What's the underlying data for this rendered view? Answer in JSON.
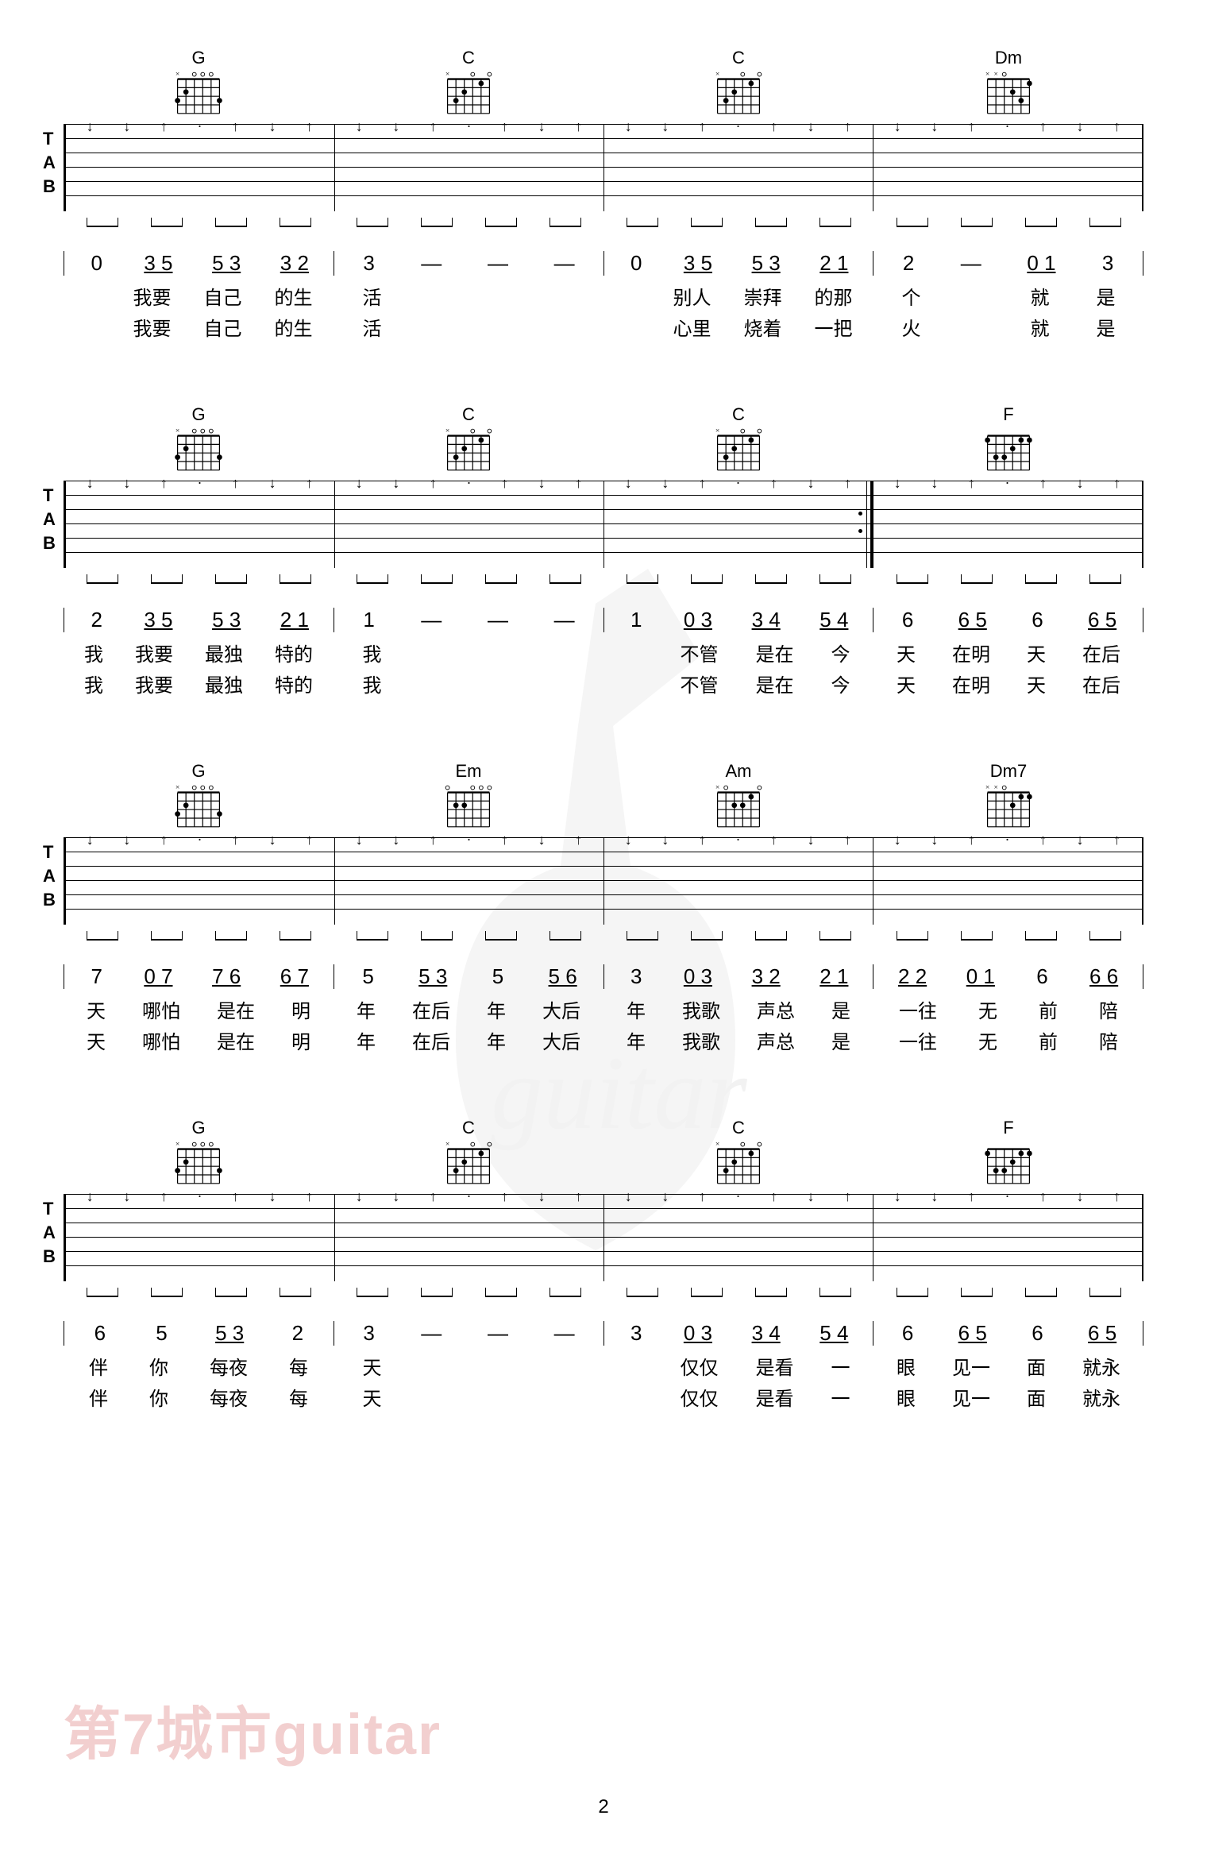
{
  "page_number": "2",
  "watermark_text": "第7城市guitar",
  "colors": {
    "background": "#ffffff",
    "staff_line": "#000000",
    "watermark": "#e8a8a8",
    "watermark_opacity": 0.55
  },
  "chord_diagrams": {
    "G": {
      "name": "G",
      "frets": [
        3,
        2,
        0,
        0,
        0,
        3
      ],
      "markers": [
        "x",
        "",
        "",
        "",
        "",
        ""
      ]
    },
    "C": {
      "name": "C",
      "frets": [
        0,
        3,
        2,
        0,
        1,
        0
      ],
      "markers": [
        "x",
        "",
        "",
        "",
        "",
        ""
      ]
    },
    "Dm": {
      "name": "Dm",
      "frets": [
        0,
        0,
        0,
        2,
        3,
        1
      ],
      "markers": [
        "x",
        "x",
        "",
        "",
        "",
        ""
      ]
    },
    "F": {
      "name": "F",
      "frets": [
        1,
        3,
        3,
        2,
        1,
        1
      ],
      "markers": [
        "",
        "",
        "",
        "",
        "",
        ""
      ]
    },
    "Em": {
      "name": "Em",
      "frets": [
        0,
        2,
        2,
        0,
        0,
        0
      ],
      "markers": [
        "",
        "",
        "",
        "",
        "",
        ""
      ]
    },
    "Am": {
      "name": "Am",
      "frets": [
        0,
        0,
        2,
        2,
        1,
        0
      ],
      "markers": [
        "x",
        "",
        "",
        "",
        "",
        ""
      ]
    },
    "Dm7": {
      "name": "Dm7",
      "frets": [
        0,
        0,
        0,
        2,
        1,
        1
      ],
      "markers": [
        "x",
        "x",
        "",
        "",
        "",
        ""
      ]
    }
  },
  "systems": [
    {
      "chords": [
        "G",
        "C",
        "C",
        "Dm"
      ],
      "strum_pattern": [
        [
          "↓",
          "↓",
          "↑",
          "·",
          "↑",
          "↓",
          "↑"
        ],
        [
          "↓",
          "↓",
          "↑",
          "·",
          "↑",
          "↓",
          "↑"
        ],
        [
          "↓",
          "↓",
          "↑",
          "·",
          "↑",
          "↓",
          "↑"
        ],
        [
          "↓",
          "↓",
          "↑",
          "·",
          "↑",
          "↓",
          "↑"
        ]
      ],
      "numbers": [
        [
          "0",
          "3 5",
          "5 3",
          "3 2"
        ],
        [
          "3",
          "—",
          "—",
          "—"
        ],
        [
          "0",
          "3 5",
          "5 3",
          "2 1"
        ],
        [
          "2",
          "—",
          "0 1",
          "3"
        ]
      ],
      "lyrics1": [
        [
          "",
          "我要",
          "自己",
          "的生"
        ],
        [
          "活",
          "",
          "",
          ""
        ],
        [
          "",
          "别人",
          "崇拜",
          "的那"
        ],
        [
          "个",
          "",
          "就",
          "是"
        ]
      ],
      "lyrics2": [
        [
          "",
          "我要",
          "自己",
          "的生"
        ],
        [
          "活",
          "",
          "",
          ""
        ],
        [
          "",
          "心里",
          "烧着",
          "一把"
        ],
        [
          "火",
          "",
          "就",
          "是"
        ]
      ]
    },
    {
      "chords": [
        "G",
        "C",
        "C",
        "F"
      ],
      "strum_pattern": [
        [
          "↓",
          "↓",
          "↑",
          "·",
          "↑",
          "↓",
          "↑"
        ],
        [
          "↓",
          "↓",
          "↑",
          "·",
          "↑",
          "↓",
          "↑"
        ],
        [
          "↓",
          "↓",
          "↑",
          "·",
          "↑",
          "↓",
          "↑"
        ],
        [
          "↓",
          "↓",
          "↑",
          "·",
          "↑",
          "↓",
          "↑"
        ]
      ],
      "has_repeat_end": true,
      "numbers": [
        [
          "2",
          "3 5",
          "5 3",
          "2 1"
        ],
        [
          "1",
          "—",
          "—",
          "—"
        ],
        [
          "1",
          "0 3",
          "3 4",
          "5 4"
        ],
        [
          "6",
          "6 5",
          "6",
          "6 5"
        ]
      ],
      "lyrics1": [
        [
          "我",
          "我要",
          "最独",
          "特的"
        ],
        [
          "我",
          "",
          "",
          ""
        ],
        [
          "",
          "不管",
          "是在",
          "今"
        ],
        [
          "天",
          "在明",
          "天",
          "在后"
        ]
      ],
      "lyrics2": [
        [
          "我",
          "我要",
          "最独",
          "特的"
        ],
        [
          "我",
          "",
          "",
          ""
        ],
        [
          "",
          "不管",
          "是在",
          "今"
        ],
        [
          "天",
          "在明",
          "天",
          "在后"
        ]
      ]
    },
    {
      "chords": [
        "G",
        "Em",
        "Am",
        "Dm7"
      ],
      "strum_pattern": [
        [
          "↓",
          "↓",
          "↑",
          "·",
          "↑",
          "↓",
          "↑"
        ],
        [
          "↓",
          "↓",
          "↑",
          "·",
          "↑",
          "↓",
          "↑"
        ],
        [
          "↓",
          "↓",
          "↑",
          "·",
          "↑",
          "↓",
          "↑"
        ],
        [
          "↓",
          "↓",
          "↑",
          "·",
          "↑",
          "↓",
          "↑"
        ]
      ],
      "numbers": [
        [
          "7",
          "0 7",
          "7 6",
          "6 7"
        ],
        [
          "5",
          "5 3",
          "5",
          "5 6"
        ],
        [
          "3",
          "0 3",
          "3 2",
          "2 1"
        ],
        [
          "2 2",
          "0 1",
          "6",
          "6 6"
        ]
      ],
      "lyrics1": [
        [
          "天",
          "哪怕",
          "是在",
          "明"
        ],
        [
          "年",
          "在后",
          "年",
          "大后"
        ],
        [
          "年",
          "我歌",
          "声总",
          "是"
        ],
        [
          "一往",
          "无",
          "前",
          "陪"
        ]
      ],
      "lyrics2": [
        [
          "天",
          "哪怕",
          "是在",
          "明"
        ],
        [
          "年",
          "在后",
          "年",
          "大后"
        ],
        [
          "年",
          "我歌",
          "声总",
          "是"
        ],
        [
          "一往",
          "无",
          "前",
          "陪"
        ]
      ]
    },
    {
      "chords": [
        "G",
        "C",
        "C",
        "F"
      ],
      "strum_pattern": [
        [
          "↓",
          "↓",
          "↑",
          "·",
          "↑",
          "↓",
          "↑"
        ],
        [
          "↓",
          "↓",
          "↑",
          "·",
          "↑",
          "↓",
          "↑"
        ],
        [
          "↓",
          "↓",
          "↑",
          "·",
          "↑",
          "↓",
          "↑"
        ],
        [
          "↓",
          "↓",
          "↑",
          "·",
          "↑",
          "↓",
          "↑"
        ]
      ],
      "numbers": [
        [
          "6",
          "5",
          "5 3",
          "2"
        ],
        [
          "3",
          "—",
          "—",
          "—"
        ],
        [
          "3",
          "0 3",
          "3 4",
          "5 4"
        ],
        [
          "6",
          "6 5",
          "6",
          "6 5"
        ]
      ],
      "lyrics1": [
        [
          "伴",
          "你",
          "每夜",
          "每"
        ],
        [
          "天",
          "",
          "",
          ""
        ],
        [
          "",
          "仅仅",
          "是看",
          "一"
        ],
        [
          "眼",
          "见一",
          "面",
          "就永"
        ]
      ],
      "lyrics2": [
        [
          "伴",
          "你",
          "每夜",
          "每"
        ],
        [
          "天",
          "",
          "",
          ""
        ],
        [
          "",
          "仅仅",
          "是看",
          "一"
        ],
        [
          "眼",
          "见一",
          "面",
          "就永"
        ]
      ]
    }
  ]
}
